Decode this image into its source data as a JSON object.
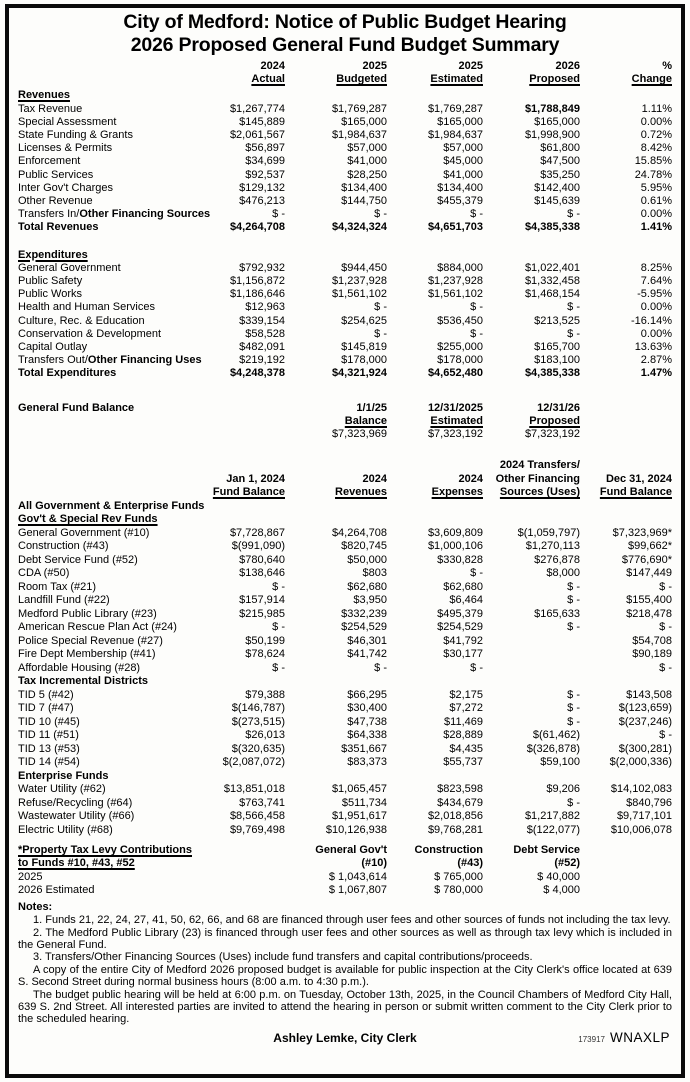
{
  "title": {
    "line1": "City of Medford:  Notice of Public Budget Hearing",
    "line2": "2026 Proposed General Fund Budget Summary"
  },
  "tables": {
    "budget_head": {
      "rows": [
        {
          "cells": [
            "2024",
            "2025",
            "2025",
            "2026",
            "%"
          ],
          "bold": true
        },
        {
          "cells": [
            "Actual",
            "Budgeted",
            "Estimated",
            "Proposed",
            "Change"
          ],
          "bold": true,
          "u_cells": true
        }
      ]
    },
    "revenues": {
      "rows": [
        {
          "label": "Revenues",
          "bold": true,
          "u_label": true
        },
        {
          "label": "Tax Revenue",
          "cells": [
            "$1,267,774",
            "$1,769,287",
            "$1,769,287",
            "$1,788,849",
            "1.11%"
          ],
          "bold_cols": [
            3
          ]
        },
        {
          "label": "Special Assessment",
          "cells": [
            "$145,889",
            "$165,000",
            "$165,000",
            "$165,000",
            "0.00%"
          ]
        },
        {
          "label": "State Funding & Grants",
          "cells": [
            "$2,061,567",
            "$1,984,637",
            "$1,984,637",
            "$1,998,900",
            "0.72%"
          ]
        },
        {
          "label": "Licenses & Permits",
          "cells": [
            "$56,897",
            "$57,000",
            "$57,000",
            "$61,800",
            "8.42%"
          ]
        },
        {
          "label": "Enforcement",
          "cells": [
            "$34,699",
            "$41,000",
            "$45,000",
            "$47,500",
            "15.85%"
          ]
        },
        {
          "label": "Public Services",
          "cells": [
            "$92,537",
            "$28,250",
            "$41,000",
            "$35,250",
            "24.78%"
          ]
        },
        {
          "label": "Inter Gov't Charges",
          "cells": [
            "$129,132",
            "$134,400",
            "$134,400",
            "$142,400",
            "5.95%"
          ]
        },
        {
          "label": "Other Revenue",
          "cells": [
            "$476,213",
            "$144,750",
            "$455,379",
            "$145,639",
            "0.61%"
          ]
        },
        {
          "label": "Transfers In/",
          "label_bold": "Other Financing Sources",
          "cells": [
            "$ -",
            "$ -",
            "$ -",
            "$ -",
            "0.00%"
          ]
        },
        {
          "label": "Total Revenues",
          "bold": true,
          "cells": [
            "$4,264,708",
            "$4,324,324",
            "$4,651,703",
            "$4,385,338",
            "1.41%"
          ]
        }
      ]
    },
    "expenditures": {
      "rows": [
        {
          "label": "Expenditures",
          "bold": true,
          "u_label": true
        },
        {
          "label": "General Government",
          "cells": [
            "$792,932",
            "$944,450",
            "$884,000",
            "$1,022,401",
            "8.25%"
          ]
        },
        {
          "label": "Public Safety",
          "cells": [
            "$1,156,872",
            "$1,237,928",
            "$1,237,928",
            "$1,332,458",
            "7.64%"
          ]
        },
        {
          "label": "Public Works",
          "cells": [
            "$1,186,646",
            "$1,561,102",
            "$1,561,102",
            "$1,468,154",
            "-5.95%"
          ]
        },
        {
          "label": "Health and Human Services",
          "cells": [
            "$12,963",
            "$ -",
            "$ -",
            "$ -",
            "0.00%"
          ]
        },
        {
          "label": "Culture, Rec. & Education",
          "cells": [
            "$339,154",
            "$254,625",
            "$536,450",
            "$213,525",
            "-16.14%"
          ]
        },
        {
          "label": "Conservation & Development",
          "cells": [
            "$58,528",
            "$ -",
            "$ -",
            "$ -",
            "0.00%"
          ]
        },
        {
          "label": "Capital Outlay",
          "cells": [
            "$482,091",
            "$145,819",
            "$255,000",
            "$165,700",
            "13.63%"
          ]
        },
        {
          "label": "Transfers Out/",
          "label_bold": "Other Financing Uses",
          "cells": [
            "$219,192",
            "$178,000",
            "$178,000",
            "$183,100",
            "2.87%"
          ]
        },
        {
          "label": "Total Expenditures",
          "bold": true,
          "cells": [
            "$4,248,378",
            "$4,321,924",
            "$4,652,480",
            "$4,385,338",
            "1.47%"
          ]
        }
      ]
    },
    "gfb": {
      "rows": [
        {
          "label": "General Fund Balance",
          "bold": true,
          "cells": [
            "",
            "1/1/25",
            "12/31/2025",
            "12/31/26",
            ""
          ]
        },
        {
          "cells": [
            "",
            "Balance",
            "Estimated",
            "Proposed",
            ""
          ],
          "bold": true,
          "u_cells": true
        },
        {
          "cells": [
            "",
            "$7,323,969",
            "$7,323,192",
            "$7,323,192",
            ""
          ]
        }
      ]
    },
    "funds": {
      "rows": [
        {
          "cells": [
            "",
            "",
            "",
            "2024 Transfers/",
            ""
          ],
          "bold": true
        },
        {
          "cells": [
            "Jan 1, 2024",
            "2024",
            "2024",
            "Other Financing",
            "Dec 31, 2024"
          ],
          "bold": true
        },
        {
          "cells": [
            "Fund Balance",
            "Revenues",
            "Expenses",
            "Sources (Uses)",
            "Fund Balance"
          ],
          "bold": true,
          "u_cells": true
        },
        {
          "label": "All Government & Enterprise Funds",
          "bold": true
        },
        {
          "label": "Gov't & Special Rev Funds",
          "bold": true,
          "u_label": true
        },
        {
          "label": "General Government (#10)",
          "cells": [
            "$7,728,867",
            "$4,264,708",
            "$3,609,809",
            "$(1,059,797)",
            "$7,323,969*"
          ]
        },
        {
          "label": "Construction (#43)",
          "cells": [
            "$(991,090)",
            "$820,745",
            "$1,000,106",
            "$1,270,113",
            "$99,662*"
          ]
        },
        {
          "label": "Debt Service Fund (#52)",
          "cells": [
            "$780,640",
            "$50,000",
            "$330,828",
            "$276,878",
            "$776,690*"
          ]
        },
        {
          "label": "CDA (#50)",
          "cells": [
            "$138,646",
            "$803",
            "$ -",
            "$8,000",
            "$147,449"
          ]
        },
        {
          "label": "Room Tax (#21)",
          "cells": [
            "$ -",
            "$62,680",
            "$62,680",
            "$ -",
            "$ -"
          ]
        },
        {
          "label": "Landfill Fund (#22)",
          "cells": [
            "$157,914",
            "$3,950",
            "$6,464",
            "$ -",
            "$155,400"
          ]
        },
        {
          "label": "Medford Public Library (#23)",
          "cells": [
            "$215,985",
            "$332,239",
            "$495,379",
            "$165,633",
            "$218,478"
          ]
        },
        {
          "label": "American Rescue Plan Act (#24)",
          "cells": [
            "$ -",
            "$254,529",
            "$254,529",
            "$ -",
            "$ -"
          ]
        },
        {
          "label": "Police Special Revenue (#27)",
          "cells": [
            "$50,199",
            "$46,301",
            "$41,792",
            "",
            "$54,708"
          ]
        },
        {
          "label": "Fire Dept Membership (#41)",
          "cells": [
            "$78,624",
            "$41,742",
            "$30,177",
            "",
            "$90,189"
          ]
        },
        {
          "label": "Affordable Housing (#28)",
          "cells": [
            "$ -",
            "$ -",
            "$ -",
            "",
            "$ -"
          ]
        },
        {
          "label": "Tax Incremental Districts",
          "bold": true
        },
        {
          "label": "TID 5 (#42)",
          "cells": [
            "$79,388",
            "$66,295",
            "$2,175",
            "$ -",
            "$143,508"
          ]
        },
        {
          "label": "TID 7 (#47)",
          "cells": [
            "$(146,787)",
            "$30,400",
            "$7,272",
            "$ -",
            "$(123,659)"
          ]
        },
        {
          "label": "TID 10 (#45)",
          "cells": [
            "$(273,515)",
            "$47,738",
            "$11,469",
            "$ -",
            "$(237,246)"
          ]
        },
        {
          "label": "TID 11 (#51)",
          "cells": [
            "$26,013",
            "$64,338",
            "$28,889",
            "$(61,462)",
            "$ -"
          ]
        },
        {
          "label": "TID 13 (#53)",
          "cells": [
            "$(320,635)",
            "$351,667",
            "$4,435",
            "$(326,878)",
            "$(300,281)"
          ]
        },
        {
          "label": "TID 14 (#54)",
          "cells": [
            "$(2,087,072)",
            "$83,373",
            "$55,737",
            "$59,100",
            "$(2,000,336)"
          ]
        },
        {
          "label": "Enterprise Funds",
          "bold": true
        },
        {
          "label": "Water Utility (#62)",
          "cells": [
            "$13,851,018",
            "$1,065,457",
            "$823,598",
            "$9,206",
            "$14,102,083"
          ]
        },
        {
          "label": "Refuse/Recycling (#64)",
          "cells": [
            "$763,741",
            "$511,734",
            "$434,679",
            "$ -",
            "$840,796"
          ]
        },
        {
          "label": "Wastewater Utility (#66)",
          "cells": [
            "$8,566,458",
            "$1,951,617",
            "$2,018,856",
            "$1,217,882",
            "$9,717,101"
          ]
        },
        {
          "label": "Electric Utility (#68)",
          "cells": [
            "$9,769,498",
            "$10,126,938",
            "$9,768,281",
            "$(122,077)",
            "$10,006,078"
          ]
        }
      ]
    },
    "levy": {
      "rows": [
        {
          "label": "*Property Tax Levy Contributions",
          "bold": true,
          "u_label": true,
          "cells": [
            "",
            "General Gov't",
            "Construction",
            "Debt Service",
            ""
          ]
        },
        {
          "label": "to Funds #10, #43, #52",
          "bold": true,
          "u_label": true,
          "cells": [
            "",
            "(#10)",
            "(#43)",
            "(#52)",
            ""
          ]
        },
        {
          "label": "2025",
          "cells": [
            "",
            "$ 1,043,614",
            "$ 765,000",
            "$ 40,000",
            ""
          ]
        },
        {
          "label": "2026 Estimated",
          "cells": [
            "",
            "$ 1,067,807",
            "$ 780,000",
            "$ 4,000",
            ""
          ]
        }
      ]
    }
  },
  "notes": {
    "heading": "Notes:",
    "items": [
      "1. Funds 21, 22, 24, 27, 41, 50, 62, 66, and 68 are financed through user fees and other sources of funds not including the tax levy.",
      "2. The Medford Public Library (23) is financed through user fees and other sources as well as through tax levy which is included in the General Fund.",
      "3. Transfers/Other Financing Sources (Uses) include fund transfers and capital contributions/proceeds.",
      "A copy of the entire City of Medford 2026 proposed budget is available for public inspection at the City Clerk's office located at 639 S. Second Street during normal business hours (8:00 a.m. to 4:30 p.m.).",
      "The budget public hearing will be held at 6:00 p.m. on Tuesday, October 13th, 2025, in the Council Chambers of Medford City Hall, 639 S. 2nd Street.  All interested parties are invited to attend the hearing in person or submit written comment to the City Clerk prior to the scheduled hearing."
    ]
  },
  "signature": "Ashley Lemke, City Clerk",
  "footer": {
    "id": "173917",
    "code": "WNAXLP"
  }
}
